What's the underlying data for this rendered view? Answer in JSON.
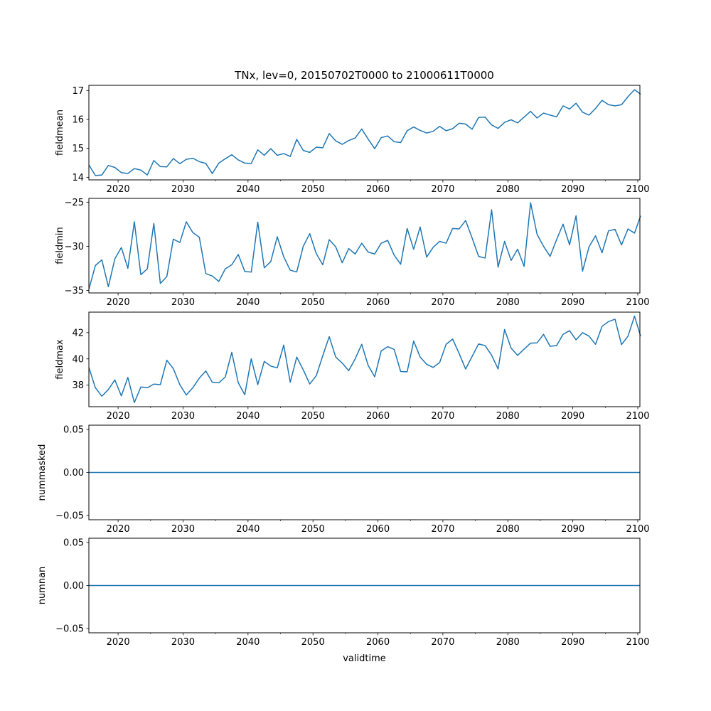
{
  "chart_data": {
    "type": "line",
    "title": "TNx, lev=0, 20150702T0000 to 21000611T0000",
    "xlabel": "validtime",
    "x_start": 2015.5,
    "x_step": 1,
    "x_last": 2100.44,
    "xlim": [
      2015.5,
      2100.33
    ],
    "xticks": [
      2020,
      2030,
      2040,
      2050,
      2060,
      2070,
      2080,
      2090,
      2100
    ],
    "xtick_labels": [
      "2020",
      "2030",
      "2040",
      "2050",
      "2060",
      "2070",
      "2080",
      "2090",
      "2100"
    ],
    "xminor_ticks": [
      2025,
      2035,
      2045,
      2055,
      2065,
      2075,
      2085,
      2095
    ],
    "line_color": "#1f77b4",
    "grid": false,
    "panels": [
      {
        "ylabel": "fieldmean",
        "ylim": [
          13.91,
          17.18
        ],
        "yticks": [
          14,
          15,
          16,
          17
        ],
        "ytick_labels": [
          "14",
          "15",
          "16",
          "17"
        ],
        "values": [
          14.43,
          14.06,
          14.08,
          14.41,
          14.34,
          14.16,
          14.13,
          14.3,
          14.25,
          14.08,
          14.58,
          14.37,
          14.36,
          14.65,
          14.47,
          14.62,
          14.66,
          14.54,
          14.48,
          14.13,
          14.49,
          14.64,
          14.78,
          14.6,
          14.49,
          14.48,
          14.95,
          14.76,
          14.99,
          14.76,
          14.82,
          14.72,
          15.31,
          14.93,
          14.86,
          15.04,
          15.02,
          15.51,
          15.26,
          15.14,
          15.27,
          15.36,
          15.67,
          15.32,
          14.99,
          15.37,
          15.43,
          15.23,
          15.2,
          15.61,
          15.74,
          15.62,
          15.53,
          15.59,
          15.76,
          15.61,
          15.68,
          15.87,
          15.84,
          15.66,
          16.07,
          16.08,
          15.81,
          15.69,
          15.9,
          15.99,
          15.88,
          16.08,
          16.28,
          16.05,
          16.22,
          16.15,
          16.09,
          16.47,
          16.36,
          16.56,
          16.25,
          16.15,
          16.38,
          16.66,
          16.51,
          16.47,
          16.51,
          16.79,
          17.03,
          16.87
        ]
      },
      {
        "ylabel": "fieldmin",
        "ylim": [
          -35.28,
          -24.57
        ],
        "yticks": [
          -35,
          -30,
          -25
        ],
        "ytick_labels": [
          "−35",
          "−30",
          "−25"
        ],
        "values": [
          -34.87,
          -32.17,
          -31.54,
          -34.57,
          -31.41,
          -30.14,
          -32.49,
          -27.22,
          -33.22,
          -32.55,
          -27.41,
          -34.2,
          -33.44,
          -29.19,
          -29.57,
          -27.22,
          -28.44,
          -28.97,
          -33.09,
          -33.36,
          -33.98,
          -32.55,
          -32.09,
          -30.92,
          -32.84,
          -32.92,
          -27.27,
          -32.44,
          -31.73,
          -28.92,
          -31.19,
          -32.71,
          -32.9,
          -30.0,
          -28.57,
          -30.81,
          -32.09,
          -29.25,
          -30.06,
          -31.87,
          -30.25,
          -30.87,
          -29.65,
          -30.65,
          -30.87,
          -29.65,
          -29.33,
          -31.0,
          -32.03,
          -27.98,
          -30.33,
          -27.81,
          -31.22,
          -30.11,
          -29.44,
          -29.65,
          -27.98,
          -28.03,
          -27.08,
          -29.06,
          -31.14,
          -31.33,
          -25.87,
          -32.36,
          -29.44,
          -31.6,
          -30.33,
          -32.27,
          -25.06,
          -28.65,
          -30.0,
          -31.14,
          -29.25,
          -27.49,
          -29.84,
          -26.54,
          -32.81,
          -30.06,
          -28.81,
          -30.73,
          -28.25,
          -28.08,
          -29.84,
          -28.03,
          -28.51,
          -26.54
        ]
      },
      {
        "ylabel": "fieldmax",
        "ylim": [
          36.36,
          43.56
        ],
        "yticks": [
          38,
          40,
          42
        ],
        "ytick_labels": [
          "38",
          "40",
          "42"
        ],
        "values": [
          39.35,
          37.8,
          37.16,
          37.67,
          38.4,
          37.18,
          38.59,
          36.67,
          37.86,
          37.8,
          38.08,
          38.04,
          39.9,
          39.26,
          38.04,
          37.25,
          37.8,
          38.53,
          39.08,
          38.22,
          38.18,
          38.62,
          40.5,
          38.18,
          37.27,
          40.01,
          38.04,
          39.81,
          39.45,
          39.32,
          41.05,
          38.22,
          40.14,
          39.17,
          38.09,
          38.71,
          40.23,
          41.69,
          40.14,
          39.68,
          39.1,
          40.01,
          41.11,
          39.5,
          38.64,
          40.6,
          40.93,
          40.72,
          39.04,
          39.02,
          41.36,
          40.14,
          39.59,
          39.35,
          39.72,
          41.11,
          41.51,
          40.41,
          39.23,
          40.19,
          41.14,
          41.01,
          40.28,
          39.23,
          42.24,
          40.82,
          40.27,
          40.74,
          41.2,
          41.22,
          41.87,
          40.96,
          41.01,
          41.87,
          42.15,
          41.45,
          42.0,
          41.73,
          41.11,
          42.48,
          42.84,
          43.02,
          41.09,
          41.73,
          43.26,
          41.73
        ]
      },
      {
        "ylabel": "nummasked",
        "ylim": [
          -0.055,
          0.055
        ],
        "yticks": [
          -0.05,
          0.0,
          0.05
        ],
        "ytick_labels": [
          "−0.05",
          "0.00",
          "0.05"
        ],
        "constant_value": 0
      },
      {
        "ylabel": "numnan",
        "ylim": [
          -0.055,
          0.055
        ],
        "yticks": [
          -0.05,
          0.0,
          0.05
        ],
        "ytick_labels": [
          "−0.05",
          "0.00",
          "0.05"
        ],
        "constant_value": 0
      }
    ]
  }
}
